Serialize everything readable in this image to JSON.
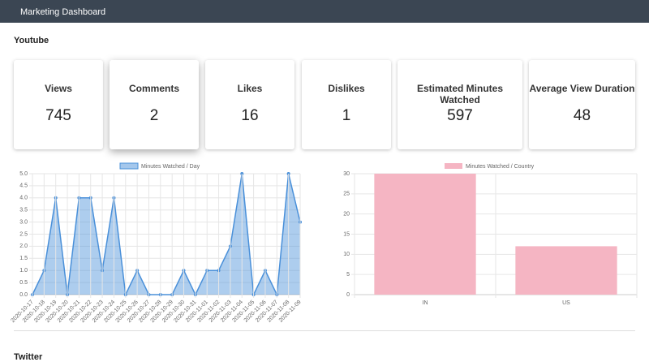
{
  "header": {
    "title": "Marketing Dashboard"
  },
  "sections": [
    {
      "title": "Youtube"
    },
    {
      "title": "Twitter"
    }
  ],
  "cards": [
    {
      "label": "Views",
      "value": 745
    },
    {
      "label": "Comments",
      "value": 2
    },
    {
      "label": "Likes",
      "value": 16
    },
    {
      "label": "Dislikes",
      "value": 1
    },
    {
      "label": "Estimated Minutes Watched",
      "value": 597
    },
    {
      "label": "Average View Duration",
      "value": 48
    }
  ],
  "chart_data": [
    {
      "type": "line",
      "categories": [
        "2020-10-17",
        "2020-10-18",
        "2020-10-19",
        "2020-10-20",
        "2020-10-21",
        "2020-10-22",
        "2020-10-23",
        "2020-10-24",
        "2020-10-25",
        "2020-10-26",
        "2020-10-27",
        "2020-10-28",
        "2020-10-29",
        "2020-10-30",
        "2020-10-31",
        "2020-11-01",
        "2020-11-02",
        "2020-11-03",
        "2020-11-04",
        "2020-11-05",
        "2020-11-06",
        "2020-11-07",
        "2020-11-08",
        "2020-11-09"
      ],
      "series": [
        {
          "name": "Minutes Watched / Day",
          "color": "#4a90d9",
          "values": [
            0,
            1,
            4,
            0,
            4,
            4,
            1,
            4,
            0,
            1,
            0,
            0,
            0,
            1,
            0,
            1,
            1,
            2,
            5,
            0,
            1,
            0,
            5,
            3
          ]
        }
      ],
      "ylim": [
        0,
        5
      ],
      "yticks": [
        {
          "value": 0,
          "label": "0.0"
        },
        0.5,
        {
          "value": 1,
          "label": "1.0"
        },
        1.5,
        {
          "value": 2,
          "label": "2.0"
        },
        2.5,
        {
          "value": 3,
          "label": "3.0"
        },
        3.5,
        {
          "value": 4,
          "label": "4.0"
        },
        4.5,
        {
          "value": 5,
          "label": "5.0"
        }
      ],
      "grid": true
    },
    {
      "type": "bar",
      "categories": [
        "IN",
        "US"
      ],
      "series": [
        {
          "name": "Minutes Watched / Country",
          "color": "#f5b5c3",
          "values": [
            30,
            12
          ]
        }
      ],
      "ylim": [
        0,
        30
      ],
      "yticks": [
        0,
        5,
        10,
        15,
        20,
        25,
        30
      ],
      "grid": true
    }
  ]
}
